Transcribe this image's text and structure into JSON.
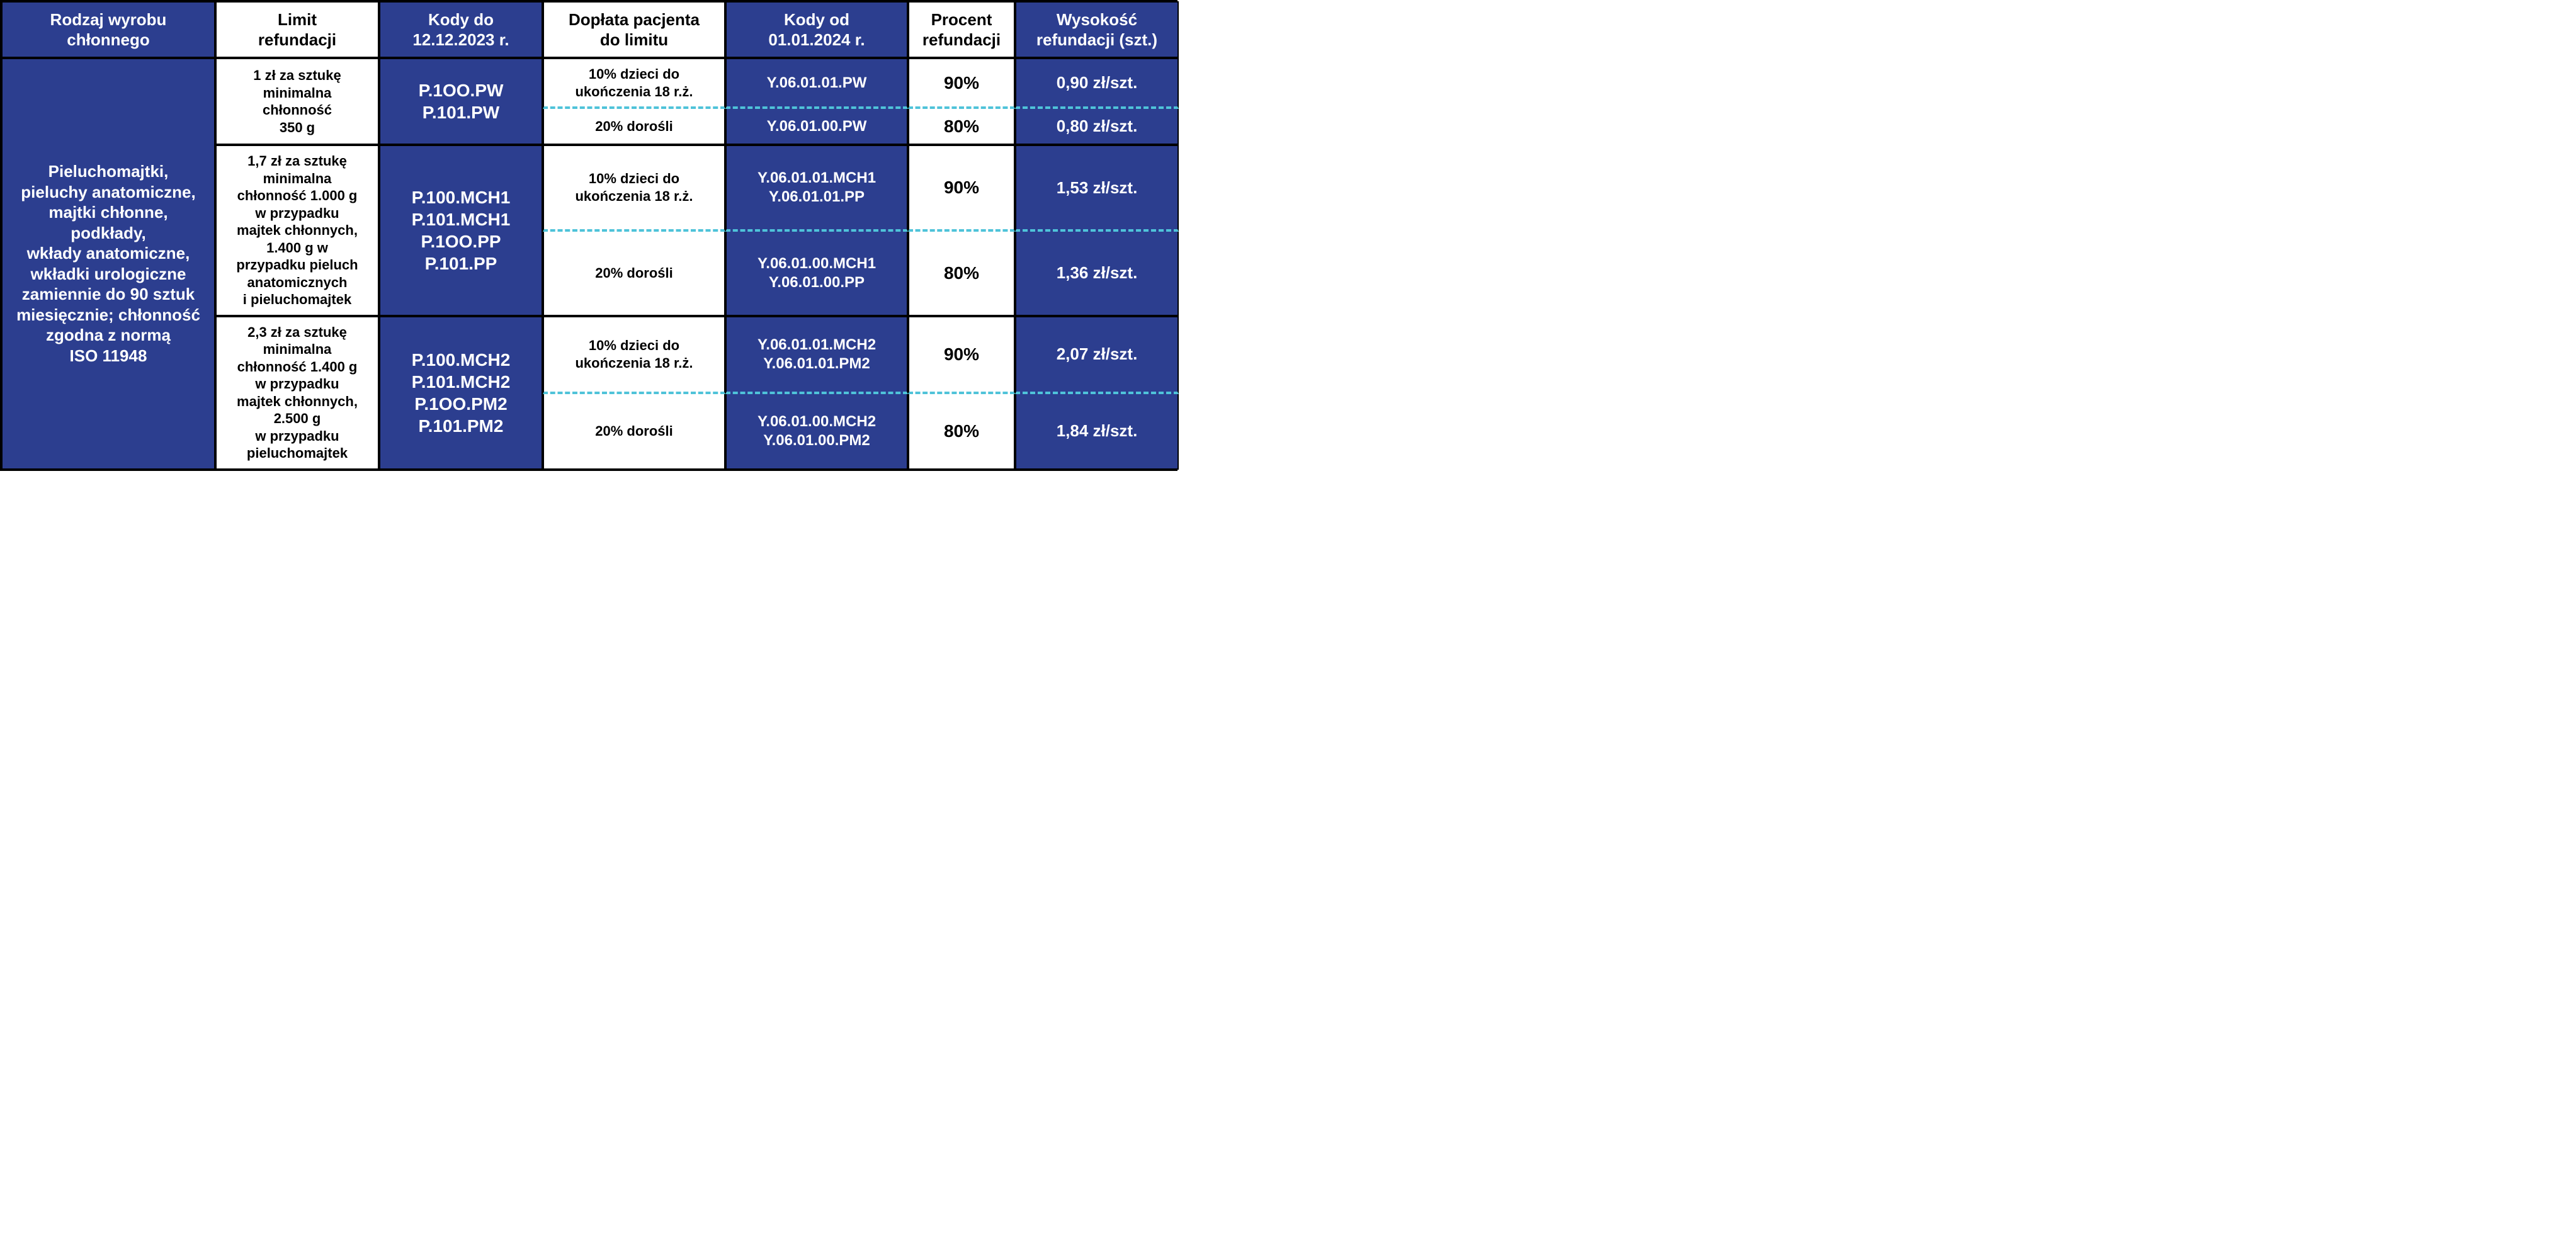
{
  "headers": {
    "type": "Rodzaj wyrobu\nchłonnego",
    "limit": "Limit\nrefundacji",
    "codes_old": "Kody do\n12.12.2023 r.",
    "surcharge": "Dopłata pacjenta\ndo limitu",
    "codes_new": "Kody od\n01.01.2024 r.",
    "percent": "Procent\nrefundacji",
    "amount": "Wysokość\nrefundacji (szt.)"
  },
  "type_text": "Pieluchomajtki,\npieluchy anatomiczne,\nmajtki chłonne,\npodkłady,\nwkłady anatomiczne,\nwkładki urologiczne\nzamiennie do 90 sztuk\nmiesięcznie; chłonność\nzgodna z normą\nISO 11948",
  "groups": [
    {
      "limit": "1 zł za sztukę\nminimalna\nchłonność\n350 g",
      "codes_old": "P.1OO.PW\nP.101.PW",
      "rows": [
        {
          "surcharge": "10% dzieci do\nukończenia 18 r.ż.",
          "codes_new": "Y.06.01.01.PW",
          "percent": "90%",
          "amount": "0,90 zł/szt."
        },
        {
          "surcharge": "20% dorośli",
          "codes_new": "Y.06.01.00.PW",
          "percent": "80%",
          "amount": "0,80 zł/szt."
        }
      ]
    },
    {
      "limit": "1,7 zł za sztukę\nminimalna\nchłonność 1.000 g\nw przypadku\nmajtek chłonnych,\n1.400 g w\nprzypadku pieluch\nanatomicznych\ni pieluchomajtek",
      "codes_old": "P.100.MCH1\nP.101.MCH1\nP.1OO.PP\nP.101.PP",
      "rows": [
        {
          "surcharge": "10% dzieci do\nukończenia 18 r.ż.",
          "codes_new": "Y.06.01.01.MCH1\nY.06.01.01.PP",
          "percent": "90%",
          "amount": "1,53 zł/szt."
        },
        {
          "surcharge": "20% dorośli",
          "codes_new": "Y.06.01.00.MCH1\nY.06.01.00.PP",
          "percent": "80%",
          "amount": "1,36 zł/szt."
        }
      ]
    },
    {
      "limit": "2,3 zł za sztukę\nminimalna\nchłonność 1.400 g\nw przypadku\nmajtek chłonnych,\n2.500 g\nw przypadku\npieluchomajtek",
      "codes_old": "P.100.MCH2\nP.101.MCH2\nP.1OO.PM2\nP.101.PM2",
      "rows": [
        {
          "surcharge": "10% dzieci do\nukończenia 18 r.ż.",
          "codes_new": "Y.06.01.01.MCH2\nY.06.01.01.PM2",
          "percent": "90%",
          "amount": "2,07 zł/szt."
        },
        {
          "surcharge": "20% dorośli",
          "codes_new": "Y.06.01.00.MCH2\nY.06.01.00.PM2",
          "percent": "80%",
          "amount": "1,84 zł/szt."
        }
      ]
    }
  ],
  "colors": {
    "blue": "#2c3e8f",
    "dash": "#4fc3d9",
    "white": "#ffffff",
    "black": "#000000"
  }
}
